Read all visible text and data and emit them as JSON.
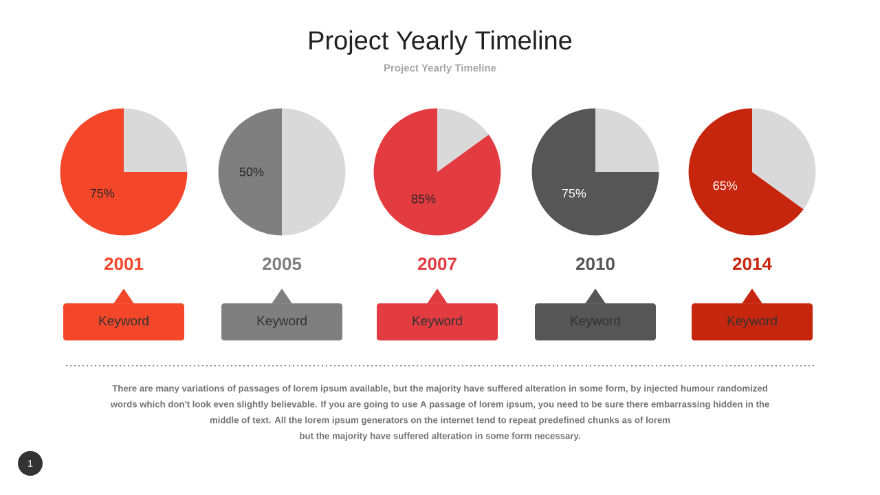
{
  "chart_data": [
    {
      "type": "other",
      "title": "Project Yearly Timeline",
      "subtitle": "Project Yearly Timeline"
    },
    {
      "type": "pie",
      "title": "2001",
      "categories": [
        null,
        null
      ],
      "values": [
        75,
        25
      ],
      "colors": [
        "#f4472a",
        "#d9d9d9"
      ],
      "value_labels": [
        "75%",
        null
      ],
      "annotations": [
        "Keyword"
      ]
    },
    {
      "type": "pie",
      "title": "2005",
      "categories": [
        null,
        null
      ],
      "values": [
        50,
        50
      ],
      "colors": [
        "#7f7f7f",
        "#d9d9d9"
      ],
      "value_labels": [
        "50%",
        null
      ],
      "annotations": [
        "Keyword"
      ]
    },
    {
      "type": "pie",
      "title": "2007",
      "categories": [
        null,
        null
      ],
      "values": [
        85,
        15
      ],
      "colors": [
        "#e23b40",
        "#d9d9d9"
      ],
      "value_labels": [
        "85%",
        null
      ],
      "annotations": [
        "Keyword"
      ]
    },
    {
      "type": "pie",
      "title": "2010",
      "categories": [
        null,
        null
      ],
      "values": [
        75,
        25
      ],
      "colors": [
        "#565656",
        "#d9d9d9"
      ],
      "value_labels": [
        "75%",
        null
      ],
      "annotations": [
        "Keyword"
      ]
    },
    {
      "type": "pie",
      "title": "2014",
      "categories": [
        null,
        null
      ],
      "values": [
        65,
        35
      ],
      "colors": [
        "#c7260e",
        "#d9d9d9"
      ],
      "value_labels": [
        "65%",
        null
      ],
      "annotations": [
        "Keyword"
      ]
    },
    {
      "type": "other",
      "annotations": [
        "There are many variations of passages of lorem ipsum available, but the majority have suffered alteration in some form, by injected humour randomized",
        "words which don't look even slightly believable. If you are going to use A passage of lorem ipsum, you need to be sure there embarrassing hidden in the",
        "middle of text. All the lorem ipsum generators on the internet tend to repeat predefined chunks as of lorem",
        "but the majority have suffered alteration in some form  necessary."
      ]
    },
    {
      "type": "other",
      "annotations": [
        "1"
      ]
    }
  ]
}
